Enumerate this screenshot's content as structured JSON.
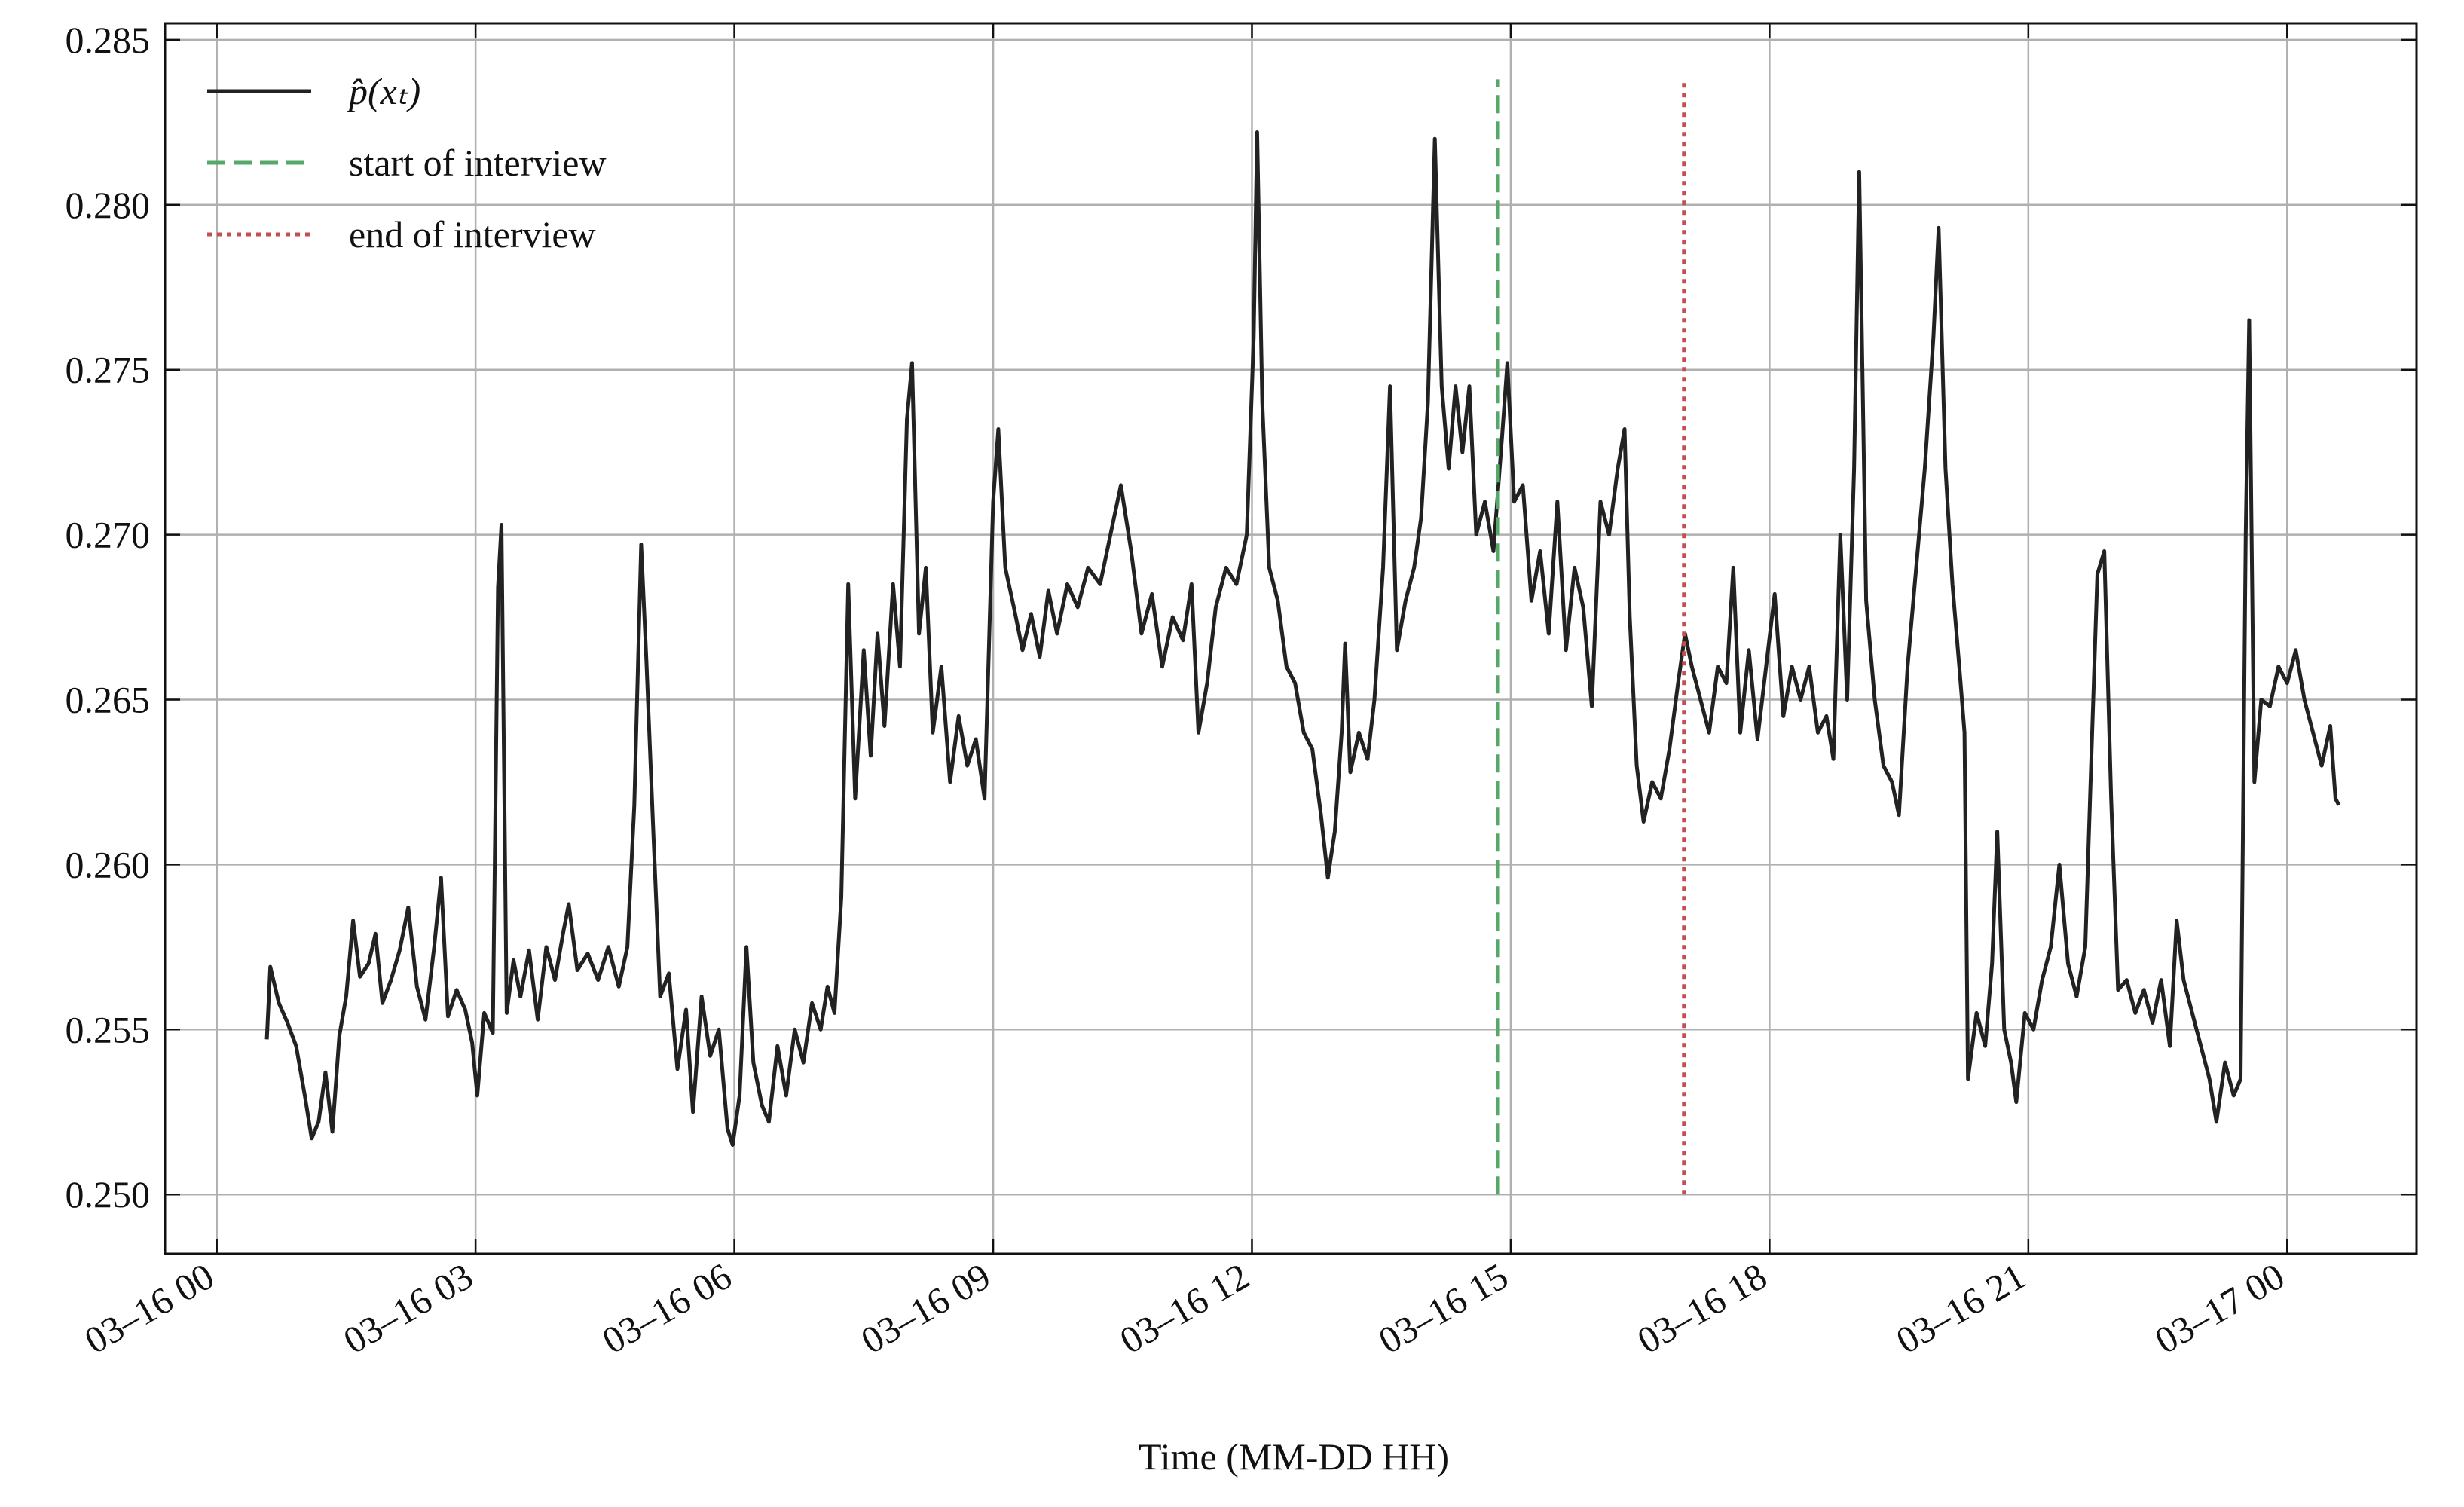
{
  "chart_data": {
    "type": "line",
    "xlabel": "Time (MM-DD HH)",
    "xlim": [
      -0.6,
      25.5
    ],
    "ylim": [
      0.2482,
      0.2855
    ],
    "xticks": [
      {
        "value": 0,
        "label": "03–16 00"
      },
      {
        "value": 3,
        "label": "03–16 03"
      },
      {
        "value": 6,
        "label": "03–16 06"
      },
      {
        "value": 9,
        "label": "03–16 09"
      },
      {
        "value": 12,
        "label": "03–16 12"
      },
      {
        "value": 15,
        "label": "03–16 15"
      },
      {
        "value": 18,
        "label": "03–16 18"
      },
      {
        "value": 21,
        "label": "03–16 21"
      },
      {
        "value": 24,
        "label": "03–17 00"
      }
    ],
    "yticks": [
      {
        "value": 0.25,
        "label": "0.250"
      },
      0.255,
      {
        "value": 0.26,
        "label": "0.260"
      },
      0.265,
      {
        "value": 0.27,
        "label": "0.270"
      },
      0.275,
      {
        "value": 0.28,
        "label": "0.280"
      },
      0.285
    ],
    "grid": true,
    "legend": "upper left",
    "series": [
      {
        "name": "p̂(xₜ)",
        "color": "#222222",
        "style": "solid",
        "x": [
          0.58,
          0.62,
          0.72,
          0.82,
          0.92,
          1.02,
          1.1,
          1.18,
          1.26,
          1.34,
          1.42,
          1.5,
          1.58,
          1.66,
          1.76,
          1.84,
          1.92,
          2.02,
          2.12,
          2.22,
          2.32,
          2.42,
          2.52,
          2.6,
          2.68,
          2.78,
          2.88,
          2.96,
          3.02,
          3.1,
          3.2,
          3.26,
          3.3,
          3.36,
          3.44,
          3.52,
          3.62,
          3.72,
          3.82,
          3.92,
          4.02,
          4.08,
          4.18,
          4.3,
          4.42,
          4.54,
          4.66,
          4.76,
          4.84,
          4.92,
          4.98,
          5.06,
          5.14,
          5.24,
          5.34,
          5.44,
          5.52,
          5.62,
          5.72,
          5.82,
          5.92,
          5.98,
          6.06,
          6.14,
          6.22,
          6.32,
          6.4,
          6.5,
          6.6,
          6.7,
          6.8,
          6.9,
          7.0,
          7.08,
          7.16,
          7.24,
          7.32,
          7.4,
          7.5,
          7.58,
          7.66,
          7.74,
          7.84,
          7.92,
          8.0,
          8.06,
          8.14,
          8.22,
          8.3,
          8.4,
          8.5,
          8.6,
          8.7,
          8.8,
          8.9,
          9.0,
          9.06,
          9.14,
          9.24,
          9.34,
          9.44,
          9.54,
          9.64,
          9.74,
          9.86,
          9.98,
          10.1,
          10.24,
          10.36,
          10.48,
          10.6,
          10.72,
          10.84,
          10.96,
          11.08,
          11.2,
          11.3,
          11.38,
          11.48,
          11.58,
          11.7,
          11.82,
          11.94,
          12.02,
          12.06,
          12.12,
          12.2,
          12.3,
          12.4,
          12.5,
          12.6,
          12.7,
          12.8,
          12.88,
          12.96,
          13.04,
          13.08,
          13.14,
          13.24,
          13.34,
          13.42,
          13.52,
          13.6,
          13.68,
          13.78,
          13.88,
          13.96,
          14.04,
          14.12,
          14.2,
          14.28,
          14.36,
          14.44,
          14.52,
          14.6,
          14.7,
          14.8,
          14.9,
          14.96,
          15.04,
          15.14,
          15.24,
          15.34,
          15.44,
          15.54,
          15.64,
          15.74,
          15.84,
          15.94,
          16.04,
          16.14,
          16.24,
          16.32,
          16.38,
          16.46,
          16.54,
          16.64,
          16.74,
          16.84,
          16.94,
          17.02,
          17.1,
          17.2,
          17.3,
          17.4,
          17.5,
          17.58,
          17.66,
          17.76,
          17.86,
          17.96,
          18.06,
          18.16,
          18.26,
          18.36,
          18.46,
          18.56,
          18.66,
          18.74,
          18.82,
          18.9,
          18.98,
          19.04,
          19.12,
          19.22,
          19.32,
          19.42,
          19.5,
          19.6,
          19.7,
          19.8,
          19.9,
          19.96,
          20.04,
          20.12,
          20.2,
          20.26,
          20.3,
          20.4,
          20.5,
          20.58,
          20.64,
          20.72,
          20.8,
          20.86,
          20.96,
          21.06,
          21.16,
          21.26,
          21.36,
          21.46,
          21.56,
          21.66,
          21.74,
          21.8,
          21.88,
          21.96,
          22.04,
          22.14,
          22.24,
          22.34,
          22.44,
          22.54,
          22.64,
          22.72,
          22.8,
          22.9,
          23.0,
          23.1,
          23.18,
          23.28,
          23.38,
          23.46,
          23.52,
          23.56,
          23.62,
          23.7,
          23.8,
          23.9,
          24.0,
          24.1,
          24.2,
          24.3,
          24.4,
          24.5,
          24.56,
          24.6
        ],
        "values": [
          0.2547,
          0.2569,
          0.2558,
          0.2552,
          0.2545,
          0.253,
          0.2517,
          0.2522,
          0.2537,
          0.2519,
          0.2548,
          0.256,
          0.2583,
          0.2566,
          0.257,
          0.2579,
          0.2558,
          0.2565,
          0.2574,
          0.2587,
          0.2563,
          0.2553,
          0.2575,
          0.2596,
          0.2554,
          0.2562,
          0.2556,
          0.2546,
          0.253,
          0.2555,
          0.2549,
          0.2684,
          0.2703,
          0.2555,
          0.2571,
          0.256,
          0.2574,
          0.2553,
          0.2575,
          0.2565,
          0.258,
          0.2588,
          0.2568,
          0.2573,
          0.2565,
          0.2575,
          0.2563,
          0.2575,
          0.2618,
          0.2697,
          0.2662,
          0.261,
          0.256,
          0.2567,
          0.2538,
          0.2556,
          0.2525,
          0.256,
          0.2542,
          0.255,
          0.252,
          0.2515,
          0.253,
          0.2575,
          0.254,
          0.2527,
          0.2522,
          0.2545,
          0.253,
          0.255,
          0.254,
          0.2558,
          0.255,
          0.2563,
          0.2555,
          0.259,
          0.2685,
          0.262,
          0.2665,
          0.2633,
          0.267,
          0.2642,
          0.2685,
          0.266,
          0.2735,
          0.2752,
          0.267,
          0.269,
          0.264,
          0.266,
          0.2625,
          0.2645,
          0.263,
          0.2638,
          0.262,
          0.271,
          0.2732,
          0.269,
          0.2678,
          0.2665,
          0.2676,
          0.2663,
          0.2683,
          0.267,
          0.2685,
          0.2678,
          0.269,
          0.2685,
          0.27,
          0.2715,
          0.2695,
          0.267,
          0.2682,
          0.266,
          0.2675,
          0.2668,
          0.2685,
          0.264,
          0.2655,
          0.2678,
          0.269,
          0.2685,
          0.27,
          0.276,
          0.2822,
          0.274,
          0.269,
          0.268,
          0.266,
          0.2655,
          0.264,
          0.2635,
          0.2615,
          0.2596,
          0.261,
          0.264,
          0.2667,
          0.2628,
          0.264,
          0.2632,
          0.265,
          0.269,
          0.2745,
          0.2665,
          0.268,
          0.269,
          0.2705,
          0.274,
          0.282,
          0.2745,
          0.272,
          0.2745,
          0.2725,
          0.2745,
          0.27,
          0.271,
          0.2695,
          0.273,
          0.2752,
          0.271,
          0.2715,
          0.268,
          0.2695,
          0.267,
          0.271,
          0.2665,
          0.269,
          0.2678,
          0.2648,
          0.271,
          0.27,
          0.272,
          0.2732,
          0.2675,
          0.263,
          0.2613,
          0.2625,
          0.262,
          0.2635,
          0.2655,
          0.267,
          0.266,
          0.265,
          0.264,
          0.266,
          0.2655,
          0.269,
          0.264,
          0.2665,
          0.2638,
          0.266,
          0.2682,
          0.2645,
          0.266,
          0.265,
          0.266,
          0.264,
          0.2645,
          0.2632,
          0.27,
          0.265,
          0.272,
          0.281,
          0.268,
          0.265,
          0.263,
          0.2625,
          0.2615,
          0.266,
          0.269,
          0.272,
          0.276,
          0.2793,
          0.272,
          0.2685,
          0.266,
          0.264,
          0.2535,
          0.2555,
          0.2545,
          0.257,
          0.261,
          0.255,
          0.254,
          0.2528,
          0.2555,
          0.255,
          0.2565,
          0.2575,
          0.26,
          0.257,
          0.256,
          0.2575,
          0.264,
          0.2688,
          0.2695,
          0.262,
          0.2562,
          0.2565,
          0.2555,
          0.2562,
          0.2552,
          0.2565,
          0.2545,
          0.2583,
          0.2565,
          0.2555,
          0.2545,
          0.2535,
          0.2522,
          0.254,
          0.253,
          0.2535,
          0.27,
          0.2765,
          0.2625,
          0.265,
          0.2648,
          0.266,
          0.2655,
          0.2665,
          0.265,
          0.264,
          0.263,
          0.2642,
          0.262,
          0.2618
        ]
      },
      {
        "name": "start of interview",
        "color": "#55a868",
        "style": "dashed",
        "x": [
          14.85,
          14.85
        ],
        "values": [
          0.25,
          0.2838
        ]
      },
      {
        "name": "end of interview",
        "color": "#c44e52",
        "style": "dotted",
        "x": [
          17.01,
          17.01
        ],
        "values": [
          0.25,
          0.2838
        ]
      }
    ]
  }
}
